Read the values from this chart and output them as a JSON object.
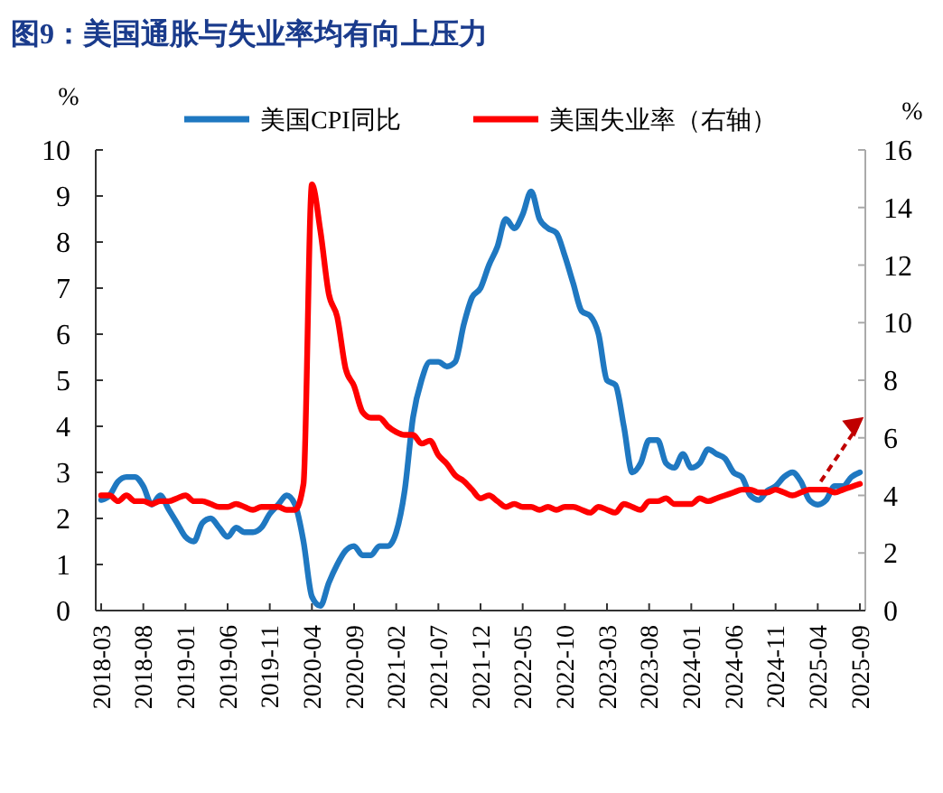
{
  "chart_data": {
    "type": "line",
    "title": "图9：美国通胀与失业率均有向上压力",
    "ylabel": "%",
    "y2label": "%",
    "categories": [
      "2018-03",
      null,
      null,
      null,
      null,
      "2018-08",
      null,
      null,
      null,
      null,
      "2019-01",
      null,
      null,
      null,
      null,
      "2019-06",
      null,
      null,
      null,
      null,
      "2019-11",
      null,
      null,
      null,
      null,
      "2020-04",
      null,
      null,
      null,
      null,
      "2020-09",
      null,
      null,
      null,
      null,
      "2021-02",
      null,
      null,
      null,
      null,
      "2021-07",
      null,
      null,
      null,
      null,
      "2021-12",
      null,
      null,
      null,
      null,
      "2022-05",
      null,
      null,
      null,
      null,
      "2022-10",
      null,
      null,
      null,
      null,
      "2023-03",
      null,
      null,
      null,
      null,
      "2023-08",
      null,
      null,
      null,
      null,
      "2024-01",
      null,
      null,
      null,
      null,
      "2024-06",
      null,
      null,
      null,
      null,
      "2024-11",
      null,
      null,
      null,
      null,
      "2025-04",
      null,
      null,
      null,
      null,
      "2025-09"
    ],
    "series": [
      {
        "name": "美国CPI同比",
        "color": "#1f78c1",
        "values": [
          2.4,
          2.5,
          2.8,
          2.9,
          2.9,
          2.7,
          2.3,
          2.5,
          2.2,
          1.9,
          1.6,
          1.5,
          1.9,
          2.0,
          1.8,
          1.6,
          1.8,
          1.7,
          1.7,
          1.8,
          2.1,
          2.3,
          2.5,
          2.3,
          1.5,
          0.3,
          0.1,
          0.6,
          1.0,
          1.3,
          1.4,
          1.2,
          1.2,
          1.4,
          1.4,
          1.7,
          2.6,
          4.2,
          5.0,
          5.4,
          5.4,
          5.3,
          5.4,
          6.2,
          6.8,
          7.0,
          7.5,
          7.9,
          8.5,
          8.3,
          8.6,
          9.1,
          8.5,
          8.3,
          8.2,
          7.7,
          7.1,
          6.5,
          6.4,
          6.0,
          5.0,
          4.9,
          4.0,
          3.0,
          3.2,
          3.7,
          3.7,
          3.2,
          3.1,
          3.4,
          3.1,
          3.2,
          3.5,
          3.4,
          3.3,
          3.0,
          2.9,
          2.5,
          2.4,
          2.6,
          2.7,
          2.9,
          3.0,
          2.8,
          2.4,
          2.3,
          2.4,
          2.7,
          2.7,
          2.9,
          3.0
        ]
      },
      {
        "name": "美国失业率（右轴）",
        "color": "#ff0000",
        "axis": "y2",
        "values": [
          4.0,
          4.0,
          3.8,
          4.0,
          3.8,
          3.8,
          3.7,
          3.8,
          3.8,
          3.9,
          4.0,
          3.8,
          3.8,
          3.7,
          3.6,
          3.6,
          3.7,
          3.6,
          3.5,
          3.6,
          3.6,
          3.6,
          3.5,
          3.5,
          4.4,
          14.8,
          13.2,
          11.0,
          10.2,
          8.4,
          7.8,
          6.9,
          6.7,
          6.7,
          6.4,
          6.2,
          6.1,
          6.1,
          5.8,
          5.9,
          5.4,
          5.1,
          4.7,
          4.5,
          4.2,
          3.9,
          4.0,
          3.8,
          3.6,
          3.7,
          3.6,
          3.6,
          3.5,
          3.6,
          3.5,
          3.6,
          3.6,
          3.5,
          3.4,
          3.6,
          3.5,
          3.4,
          3.7,
          3.6,
          3.5,
          3.8,
          3.8,
          3.9,
          3.7,
          3.7,
          3.7,
          3.9,
          3.8,
          3.9,
          4.0,
          4.1,
          4.2,
          4.2,
          4.1,
          4.1,
          4.2,
          4.1,
          4.0,
          4.1,
          4.2,
          4.2,
          4.2,
          4.1,
          4.2,
          4.3,
          4.4
        ]
      }
    ],
    "ylim": [
      0,
      10
    ],
    "yticks": [
      0,
      1,
      2,
      3,
      4,
      5,
      6,
      7,
      8,
      9,
      10
    ],
    "y2lim": [
      0,
      16
    ],
    "y2ticks": [
      0,
      2,
      4,
      6,
      8,
      10,
      12,
      14,
      16
    ],
    "legend": "top",
    "grid": false
  }
}
